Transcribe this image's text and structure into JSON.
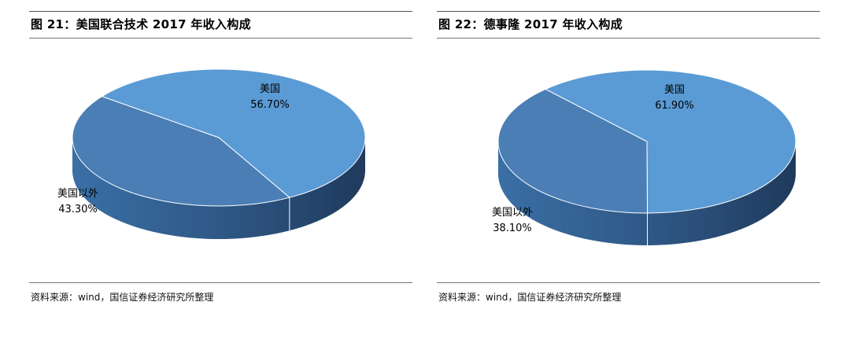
{
  "charts": [
    {
      "title": "图 21：美国联合技术 2017 年收入构成",
      "source": "资料来源：wind，国信证券经济研究所整理"
    },
    {
      "title": "图 22：德事隆 2017 年收入构成",
      "source": "资料来源：wind，国信证券经济研究所整理"
    }
  ],
  "chart_data": [
    {
      "type": "pie",
      "title": "图 21：美国联合技术 2017 年收入构成",
      "slices": [
        {
          "label": "美国",
          "value": 56.7,
          "display": "56.70%",
          "color": "#5B9BD5"
        },
        {
          "label": "美国以外",
          "value": 43.3,
          "display": "43.30%",
          "color": "#4A7EB5"
        }
      ],
      "style": "3d"
    },
    {
      "type": "pie",
      "title": "图 22：德事隆 2017 年收入构成",
      "slices": [
        {
          "label": "美国",
          "value": 61.9,
          "display": "61.90%",
          "color": "#5B9BD5"
        },
        {
          "label": "美国以外",
          "value": 38.1,
          "display": "38.10%",
          "color": "#4A7EB5"
        }
      ],
      "style": "3d"
    }
  ],
  "colors": {
    "top_light": "#5B9BD5",
    "top_dark": "#4A7EB5",
    "side_light": "#3A6FA6",
    "side_dark": "#1F3A5C"
  }
}
